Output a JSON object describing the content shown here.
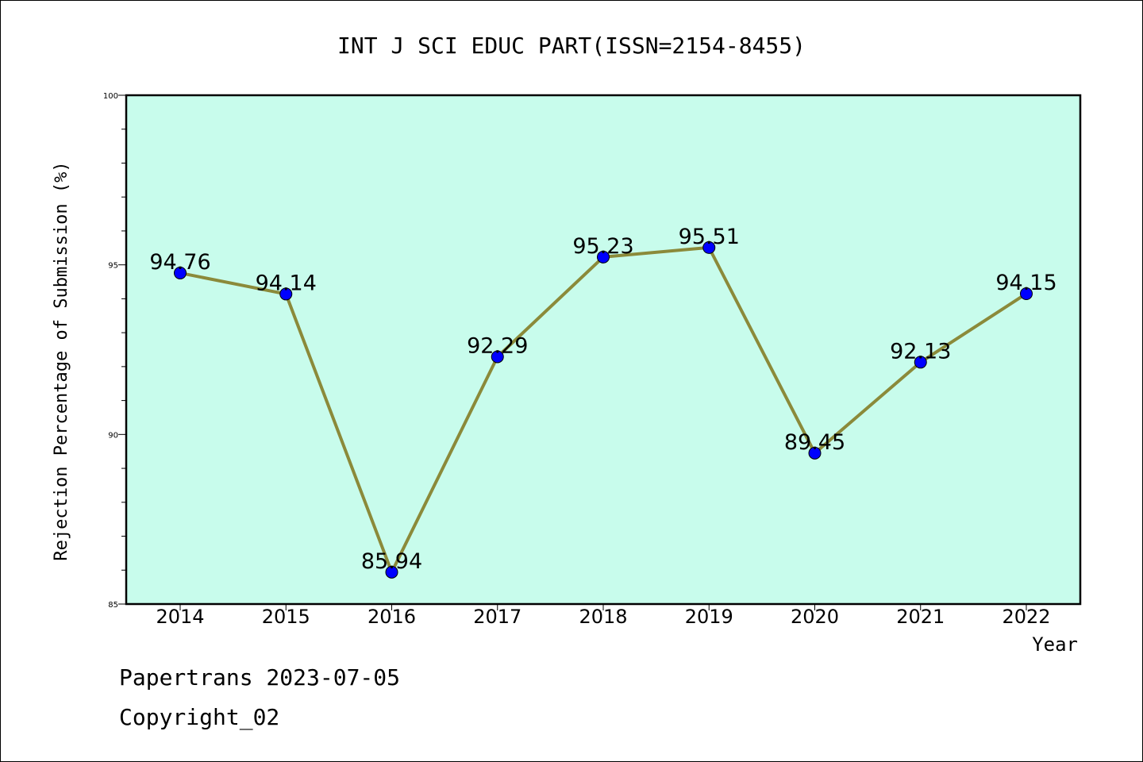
{
  "footer": {
    "line1": "Papertrans 2023-07-05",
    "line2": "Copyright_02"
  },
  "chart_data": {
    "type": "line",
    "title": "INT J SCI EDUC PART(ISSN=2154-8455)",
    "xlabel": "Year",
    "ylabel": "Rejection Percentage of Submission (%)",
    "categories": [
      "2014",
      "2015",
      "2016",
      "2017",
      "2018",
      "2019",
      "2020",
      "2021",
      "2022"
    ],
    "series": [
      {
        "values": [
          94.76,
          94.14,
          85.94,
          92.29,
          95.23,
          95.51,
          89.45,
          92.13,
          94.15
        ],
        "labels": [
          "94.76",
          "94.14",
          "85.94",
          "92.29",
          "95.23",
          "95.51",
          "89.45",
          "92.13",
          "94.15"
        ]
      }
    ],
    "ylim": [
      85,
      100
    ],
    "yticks": [
      85,
      90,
      95,
      100
    ],
    "ytick_labels": [
      "85",
      "90",
      "95",
      "100"
    ],
    "grid": false,
    "colors": {
      "plot_background": "#c8fcec",
      "line": "#8b8a3a",
      "marker": "#0000ff"
    }
  }
}
